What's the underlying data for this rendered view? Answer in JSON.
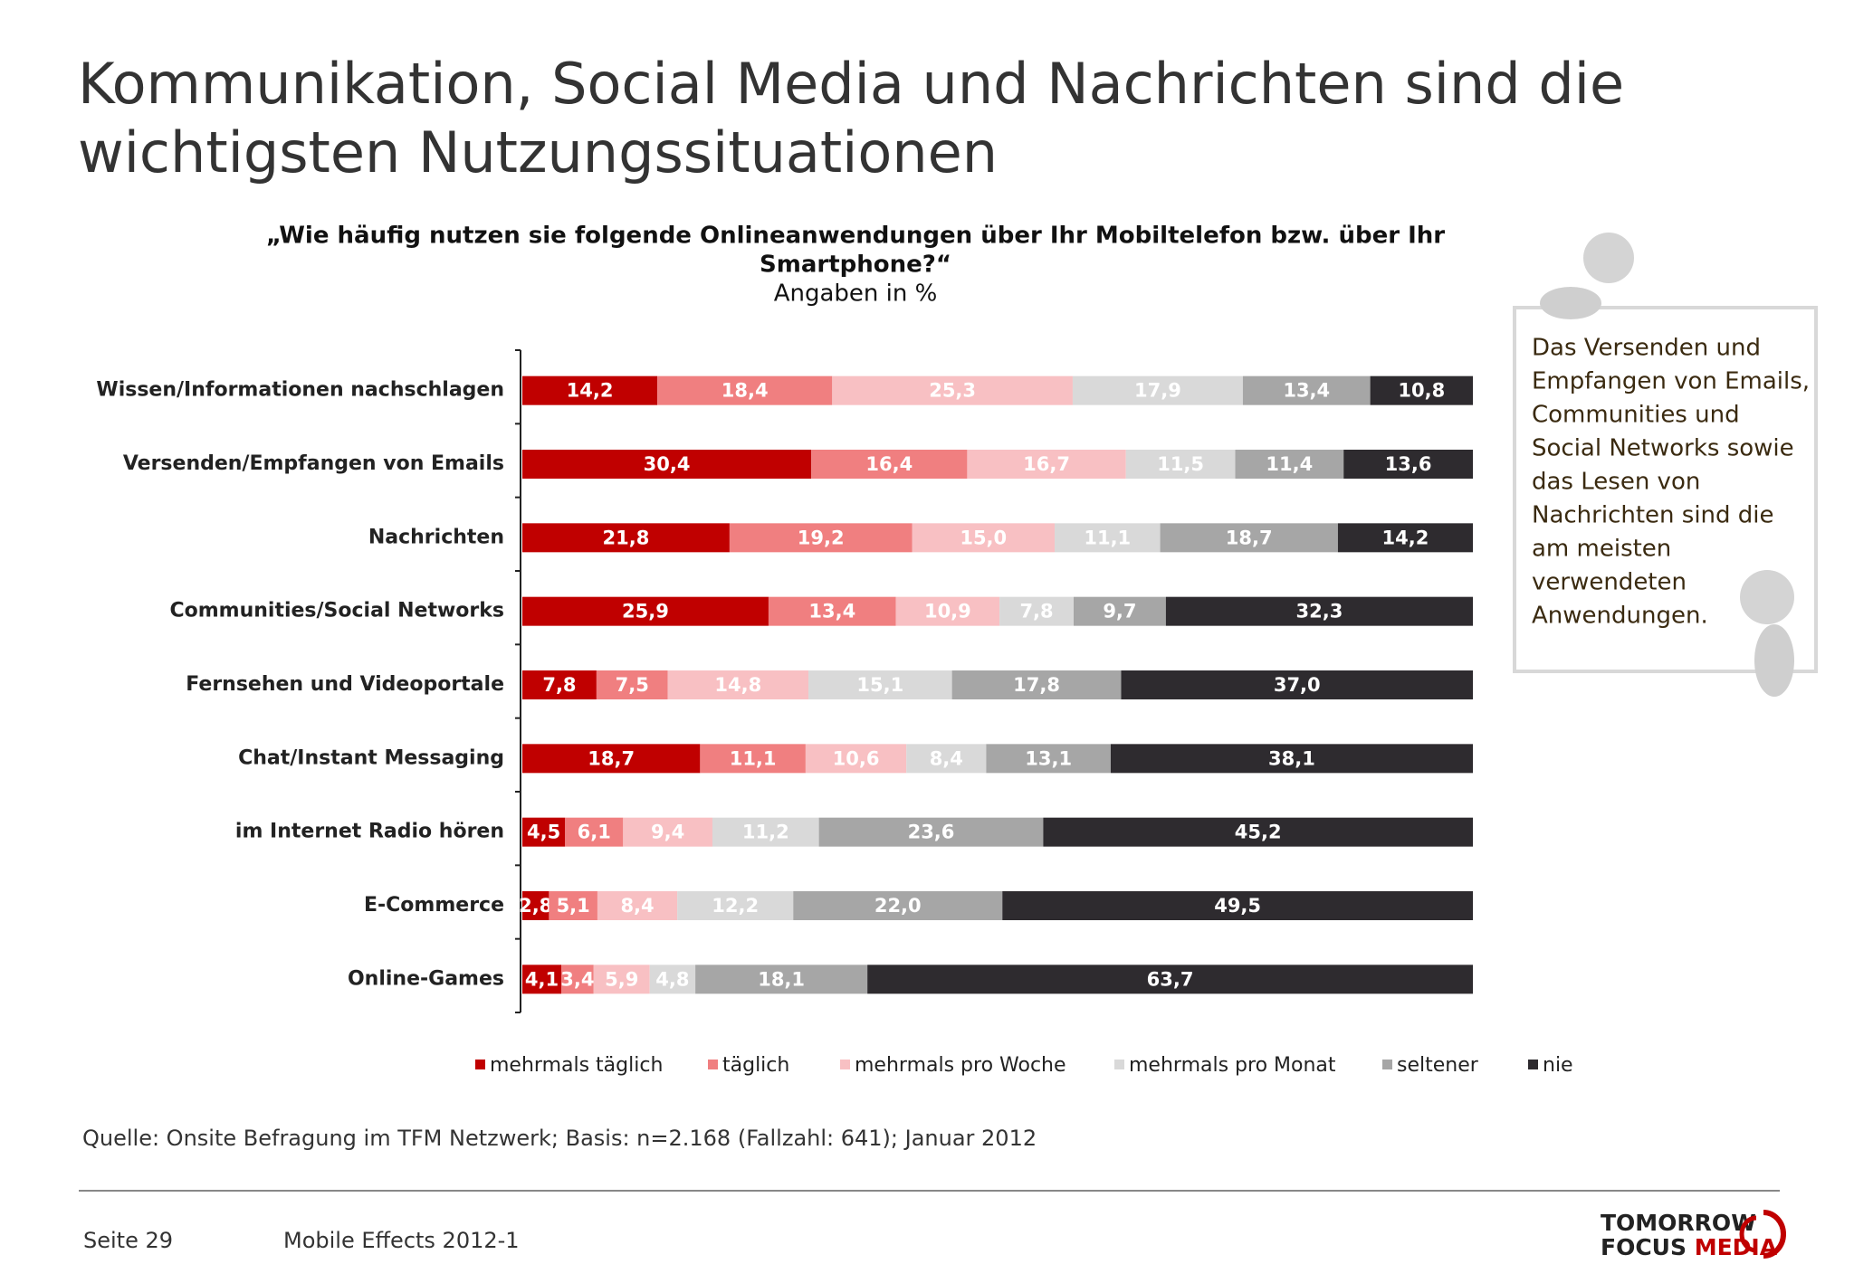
{
  "chart_data": {
    "type": "stacked_bar_horizontal",
    "title": [
      "Kommunikation, Social Media und Nachrichten sind die",
      "wichtigsten Nutzungssituationen"
    ],
    "subtitle": [
      "„Wie häufig nutzen sie folgende Onlineanwendungen über Ihr Mobiltelefon bzw. über Ihr",
      "Smartphone?“"
    ],
    "unit_note": "Angaben in %",
    "categories": [
      "Wissen/Informationen nachschlagen",
      "Versenden/Empfangen von Emails",
      "Nachrichten",
      "Communities/Social Networks",
      "Fernsehen und Videoportale",
      "Chat/Instant Messaging",
      "im Internet Radio hören",
      "E-Commerce",
      "Online-Games"
    ],
    "xlim": [
      0,
      100
    ],
    "legend": "bottom",
    "series": [
      {
        "name": "mehrmals täglich",
        "color": "#c00000",
        "values": [
          14.2,
          30.4,
          21.8,
          25.9,
          7.8,
          18.7,
          4.5,
          2.8,
          4.1
        ],
        "value_labels": [
          "14,2",
          "30,4",
          "21,8",
          "25,9",
          "7,8",
          "18,7",
          "4,5",
          "2,8",
          "4,1"
        ]
      },
      {
        "name": "täglich",
        "color": "#f07f80",
        "values": [
          18.4,
          16.4,
          19.2,
          13.4,
          7.5,
          11.1,
          6.1,
          5.1,
          3.4
        ],
        "value_labels": [
          "18,4",
          "16,4",
          "19,2",
          "13,4",
          "7,5",
          "11,1",
          "6,1",
          "5,1",
          "3,4"
        ]
      },
      {
        "name": "mehrmals pro Woche",
        "color": "#f8c0c3",
        "values": [
          25.3,
          16.7,
          15.0,
          10.9,
          14.8,
          10.6,
          9.4,
          8.4,
          5.9
        ],
        "value_labels": [
          "25,3",
          "16,7",
          "15,0",
          "10,9",
          "14,8",
          "10,6",
          "9,4",
          "8,4",
          "5,9"
        ]
      },
      {
        "name": "mehrmals pro Monat",
        "color": "#d9d9d9",
        "values": [
          17.9,
          11.5,
          11.1,
          7.8,
          15.1,
          8.4,
          11.2,
          12.2,
          4.8
        ],
        "value_labels": [
          "17,9",
          "11,5",
          "11,1",
          "7,8",
          "15,1",
          "8,4",
          "11,2",
          "12,2",
          "4,8"
        ]
      },
      {
        "name": "seltener",
        "color": "#a6a6a6",
        "values": [
          13.4,
          11.4,
          18.7,
          9.7,
          17.8,
          13.1,
          23.6,
          22.0,
          18.1
        ],
        "value_labels": [
          "13,4",
          "11,4",
          "18,7",
          "9,7",
          "17,8",
          "13,1",
          "23,6",
          "22,0",
          "18,1"
        ]
      },
      {
        "name": "nie",
        "color": "#2e2b2f",
        "values": [
          10.8,
          13.6,
          14.2,
          32.3,
          37.0,
          38.1,
          45.2,
          49.5,
          63.7
        ],
        "value_labels": [
          "10,8",
          "13,6",
          "14,2",
          "32,3",
          "37,0",
          "38,1",
          "45,2",
          "49,5",
          "63,7"
        ]
      }
    ]
  },
  "note": [
    "Das Versenden und",
    "Empfangen von Emails,",
    "Communities und",
    "Social Networks sowie",
    "das Lesen von",
    "Nachrichten sind die",
    "am meisten",
    "verwendeten",
    "Anwendungen."
  ],
  "source": "Quelle: Onsite Befragung im TFM Netzwerk; Basis: n=2.168 (Fallzahl: 641); Januar 2012",
  "footer": {
    "page": "Seite 29",
    "report": "Mobile Effects 2012-1"
  },
  "logo": {
    "line1": "TOMORROW",
    "line2a": "FOCUS",
    "line2b": "MEDIA"
  }
}
